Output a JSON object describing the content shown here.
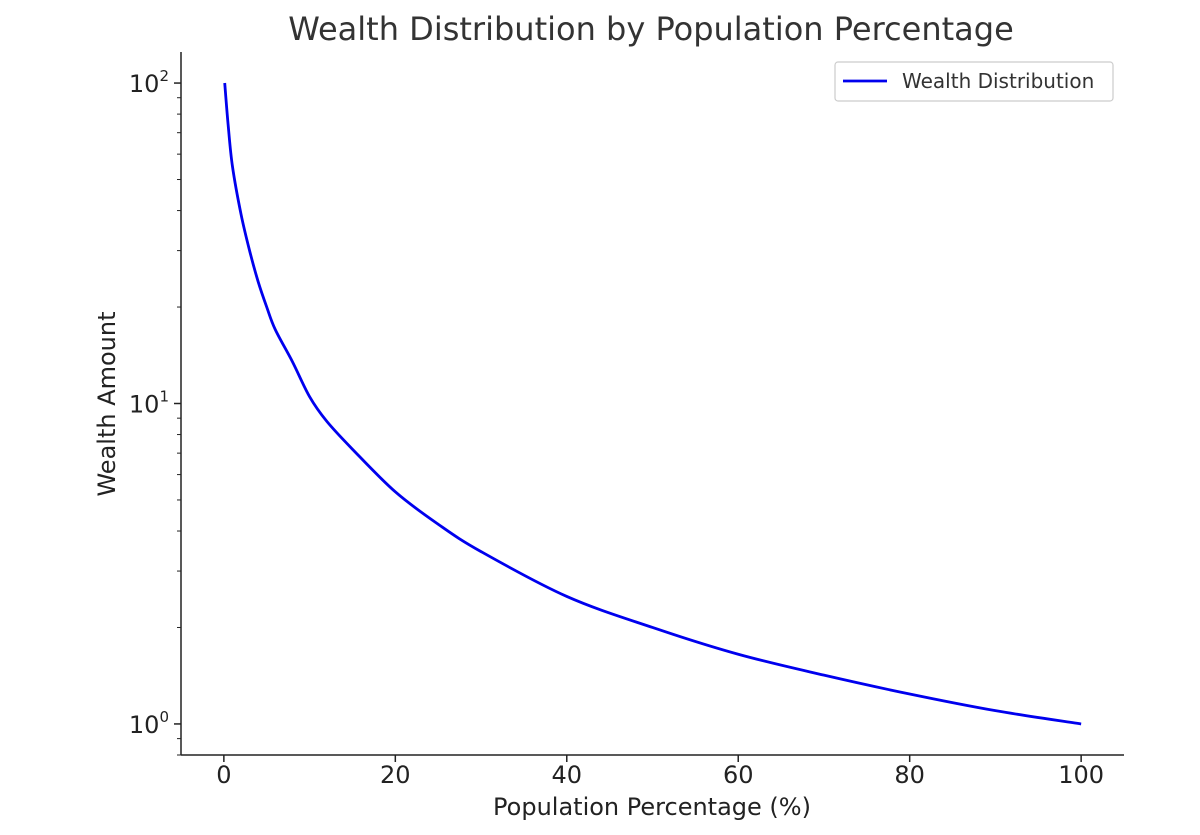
{
  "chart_data": {
    "type": "line",
    "title": "Wealth Distribution by Population Percentage",
    "xlabel": "Population Percentage (%)",
    "ylabel": "Wealth Amount",
    "xlim": [
      -5,
      105
    ],
    "ylim": [
      0.8,
      125
    ],
    "yscale": "log",
    "grid": false,
    "legend_position": "top-right",
    "x_ticks": [
      0,
      20,
      40,
      60,
      80,
      100
    ],
    "x_tick_labels": [
      "0",
      "20",
      "40",
      "60",
      "80",
      "100"
    ],
    "y_ticks": [
      {
        "value": 1,
        "base": "10",
        "exp": "0"
      },
      {
        "value": 10,
        "base": "10",
        "exp": "1"
      },
      {
        "value": 100,
        "base": "10",
        "exp": "2"
      }
    ],
    "series": [
      {
        "name": "Wealth Distribution",
        "color": "#0000ee",
        "x": [
          0.1,
          0.5,
          1,
          2,
          3,
          4,
          5,
          6,
          8,
          10,
          12,
          15,
          20,
          25,
          30,
          40,
          50,
          60,
          70,
          80,
          90,
          100
        ],
        "y": [
          100,
          74,
          55,
          39,
          30,
          24,
          20,
          17,
          13.5,
          10.5,
          8.8,
          7.2,
          5.3,
          4.2,
          3.45,
          2.5,
          2.0,
          1.65,
          1.42,
          1.24,
          1.1,
          1.0
        ]
      }
    ]
  }
}
